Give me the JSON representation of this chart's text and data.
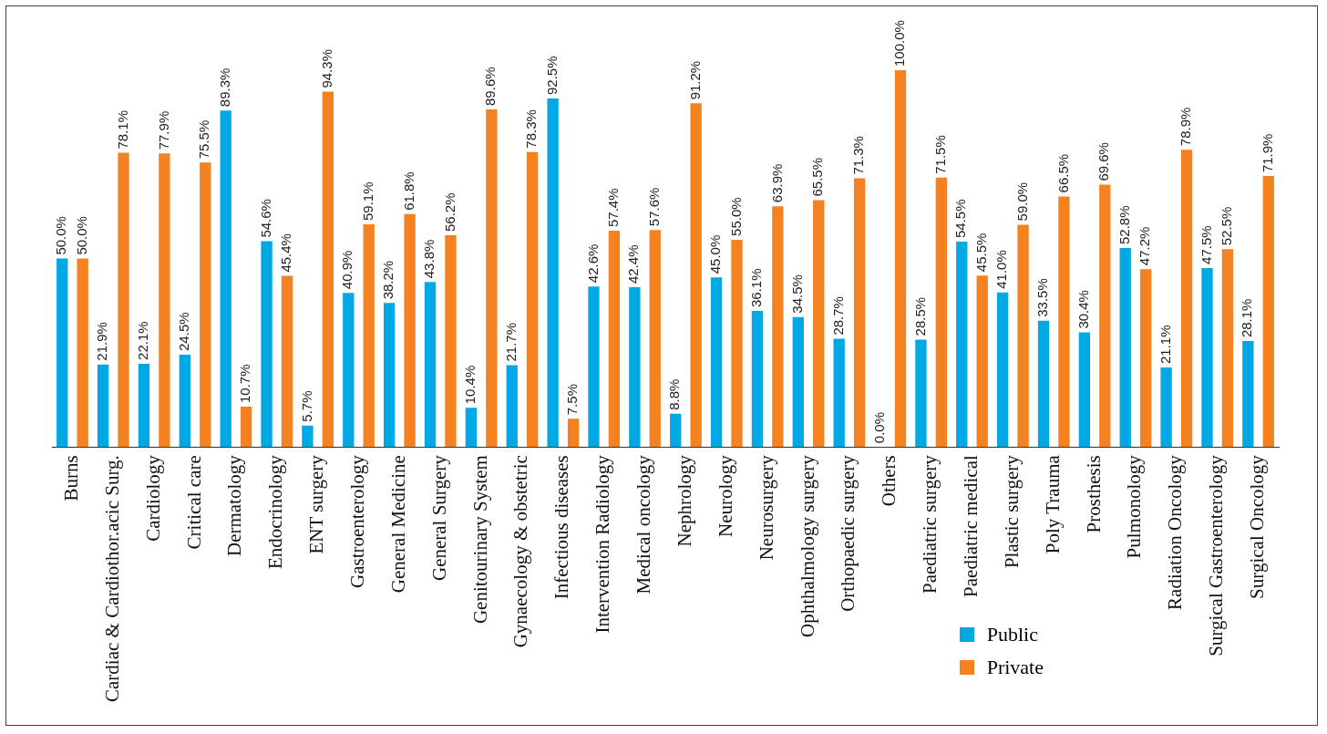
{
  "chart_data": {
    "type": "bar",
    "categories": [
      "Burns",
      "Cardiac & Cardiothor.acic Surg.",
      "Cardiology",
      "Critical care",
      "Dermatology",
      "Endocrinology",
      "ENT surgery",
      "Gastroenterology",
      "General Medicine",
      "General Surgery",
      "Genitourinary System",
      "Gynaecology & obstetric",
      "Infectious diseases",
      "Intervention Radiology",
      "Medical oncology",
      "Nephrology",
      "Neurology",
      "Neurosurgery",
      "Ophthalmology surgery",
      "Orthopaedic surgery",
      "Others",
      "Paediatric surgery",
      "Paediatric medical",
      "Plastic surgery",
      "Poly Trauma",
      "Prosthesis",
      "Pulmonology",
      "Radiation Oncology",
      "Surgical Gastroenterology",
      "Surgical Oncology"
    ],
    "series": [
      {
        "name": "Public",
        "color": "#00a9e6",
        "values": [
          50.0,
          21.9,
          22.1,
          24.5,
          89.3,
          54.6,
          5.7,
          40.9,
          38.2,
          43.8,
          10.4,
          21.7,
          92.5,
          42.6,
          42.4,
          8.8,
          45.0,
          36.1,
          34.5,
          28.7,
          0.0,
          28.5,
          54.5,
          41.0,
          33.5,
          30.4,
          52.8,
          21.1,
          47.5,
          28.1
        ],
        "value_labels": [
          "50.0%",
          "21.9%",
          "22.1%",
          "24.5%",
          "89.3%",
          "54.6%",
          "5.7%",
          "40.9%",
          "38.2%",
          "43.8%",
          "10.4%",
          "21.7%",
          "92.5%",
          "42.6%",
          "42.4%",
          "8.8%",
          "45.0%",
          "36.1%",
          "34.5%",
          "28.7%",
          "0.0%",
          "28.5%",
          "54.5%",
          "41.0%",
          "33.5%",
          "30.4%",
          "52.8%",
          "21.1%",
          "47.5%",
          "28.1%"
        ]
      },
      {
        "name": "Private",
        "color": "#f58220",
        "values": [
          50.0,
          78.1,
          77.9,
          75.5,
          10.7,
          45.4,
          94.3,
          59.1,
          61.8,
          56.2,
          89.6,
          78.3,
          7.5,
          57.4,
          57.6,
          91.2,
          55.0,
          63.9,
          65.5,
          71.3,
          100.0,
          71.5,
          45.5,
          59.0,
          66.5,
          69.6,
          47.2,
          78.9,
          52.5,
          71.9
        ],
        "value_labels": [
          "50.0%",
          "78.1%",
          "77.9%",
          "75.5%",
          "10.7%",
          "45.4%",
          "94.3%",
          "59.1%",
          "61.8%",
          "56.2%",
          "89.6%",
          "78.3%",
          "7.5%",
          "57.4%",
          "57.6%",
          "91.2%",
          "55.0%",
          "63.9%",
          "65.5%",
          "71.3%",
          "100.0%",
          "71.5%",
          "45.5%",
          "59.0%",
          "66.5%",
          "69.6%",
          "47.2%",
          "78.9%",
          "52.5%",
          "71.9%"
        ]
      }
    ],
    "grid": false,
    "legend": "bottom right"
  }
}
